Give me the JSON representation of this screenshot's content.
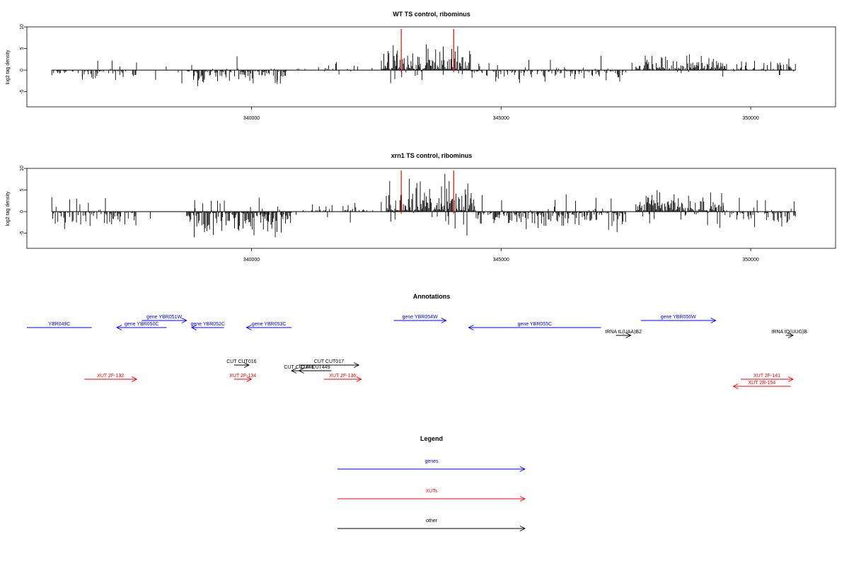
{
  "chart_data": [
    {
      "type": "bar",
      "title": "WT TS control, ribominus",
      "xlabel": "",
      "ylabel": "log2 tag density",
      "xlim": [
        335500,
        351700
      ],
      "ylim": [
        -8.5,
        10
      ],
      "x_ticks": [
        "340000",
        "345000",
        "350000"
      ],
      "y_ticks": [
        "10",
        "5",
        "0",
        "-5"
      ],
      "x_range_of_data": [
        336000,
        350900
      ],
      "red_markers_x": [
        343000,
        344050
      ],
      "dense_regions": [
        {
          "from": 336000,
          "to": 337700,
          "sign": -1,
          "max": 2.5,
          "density": 0.35
        },
        {
          "from": 338700,
          "to": 339200,
          "sign": -1,
          "max": 4.5,
          "density": 0.8
        },
        {
          "from": 339200,
          "to": 340700,
          "sign": -1,
          "max": 4,
          "density": 0.7
        },
        {
          "from": 340900,
          "to": 342600,
          "sign": 1,
          "max": 2,
          "density": 0.15
        },
        {
          "from": 342600,
          "to": 344400,
          "sign": 1,
          "max": 7,
          "density": 1
        },
        {
          "from": 344400,
          "to": 347500,
          "sign": -1,
          "max": 3.5,
          "density": 0.55
        },
        {
          "from": 347700,
          "to": 349500,
          "sign": 1,
          "max": 4,
          "density": 0.85
        },
        {
          "from": 349500,
          "to": 350900,
          "sign": 1,
          "max": 3,
          "density": 0.3
        }
      ]
    },
    {
      "type": "bar",
      "title": "xrn1 TS control, ribominus",
      "xlabel": "",
      "ylabel": "log2 tag density",
      "xlim": [
        335500,
        351700
      ],
      "ylim": [
        -8.5,
        10
      ],
      "x_ticks": [
        "340000",
        "345000",
        "350000"
      ],
      "y_ticks": [
        "10",
        "5",
        "0",
        "-5"
      ],
      "x_range_of_data": [
        336000,
        350900
      ],
      "red_markers_x": [
        343000,
        344050
      ],
      "dense_regions": [
        {
          "from": 336000,
          "to": 337700,
          "sign": -1,
          "max": 4.5,
          "density": 0.55
        },
        {
          "from": 338700,
          "to": 339200,
          "sign": -1,
          "max": 7,
          "density": 1
        },
        {
          "from": 339200,
          "to": 340800,
          "sign": -1,
          "max": 7.5,
          "density": 0.9
        },
        {
          "from": 341000,
          "to": 342600,
          "sign": 1,
          "max": 3,
          "density": 0.25
        },
        {
          "from": 342700,
          "to": 344500,
          "sign": 1,
          "max": 9,
          "density": 1
        },
        {
          "from": 344500,
          "to": 347500,
          "sign": -1,
          "max": 5,
          "density": 0.85
        },
        {
          "from": 347700,
          "to": 349500,
          "sign": 1,
          "max": 5.5,
          "density": 0.95
        },
        {
          "from": 349500,
          "to": 350900,
          "sign": -1,
          "max": 4,
          "density": 0.5
        }
      ]
    }
  ],
  "annotations": {
    "title": "Annotations",
    "features": [
      {
        "label": "YBR049C",
        "color": "#0000ff",
        "x1": 335500,
        "x2": 336800,
        "row": 1,
        "strand": "-",
        "arrow": false
      },
      {
        "label": "gene YBR050C",
        "color": "#0000ff",
        "x1": 337300,
        "x2": 338300,
        "row": 1,
        "strand": "-",
        "arrow": true
      },
      {
        "label": "gene YBR051W",
        "color": "#0000ff",
        "x1": 337800,
        "x2": 338700,
        "row": 0,
        "strand": "+",
        "arrow": true
      },
      {
        "label": "gene YBR052C",
        "color": "#0000ff",
        "x1": 338800,
        "x2": 339450,
        "row": 1,
        "strand": "-",
        "arrow": true
      },
      {
        "label": "gene YBR053C",
        "color": "#0000ff",
        "x1": 339900,
        "x2": 340800,
        "row": 1,
        "strand": "-",
        "arrow": true
      },
      {
        "label": "gene YBR054W",
        "color": "#0000ff",
        "x1": 342850,
        "x2": 343900,
        "row": 0,
        "strand": "+",
        "arrow": true
      },
      {
        "label": "gene YBR055C",
        "color": "#0000ff",
        "x1": 344350,
        "x2": 347000,
        "row": 1,
        "strand": "-",
        "arrow": true
      },
      {
        "label": "gene YBR056W",
        "color": "#0000ff",
        "x1": 347800,
        "x2": 349300,
        "row": 0,
        "strand": "+",
        "arrow": true
      },
      {
        "label": "tRNA tL(UAA)B2",
        "color": "#000000",
        "x1": 347300,
        "x2": 347600,
        "row": 2,
        "strand": "+",
        "arrow": true
      },
      {
        "label": "tRNA tQ(UUG)B",
        "color": "#000000",
        "x1": 350700,
        "x2": 350850,
        "row": 2,
        "strand": "+",
        "arrow": true
      },
      {
        "label": "CUT CUT016",
        "color": "#000000",
        "x1": 339650,
        "x2": 339950,
        "row": 3,
        "strand": "+",
        "arrow": true
      },
      {
        "label": "CUT CUT017",
        "color": "#000000",
        "x1": 340950,
        "x2": 342150,
        "row": 3,
        "strand": "+",
        "arrow": true
      },
      {
        "label": "CUT CUT448",
        "color": "#000000",
        "x1": 340800,
        "x2": 341100,
        "row": 4,
        "strand": "-",
        "arrow": true
      },
      {
        "label": "CUT CUT449",
        "color": "#000000",
        "x1": 340950,
        "x2": 341600,
        "row": 4,
        "strand": "-",
        "arrow": true
      },
      {
        "label": "XUT 2F-132",
        "color": "#ff0000",
        "x1": 336650,
        "x2": 337700,
        "row": 5,
        "strand": "+",
        "arrow": true
      },
      {
        "label": "XUT 2F-134",
        "color": "#ff0000",
        "x1": 339650,
        "x2": 340000,
        "row": 5,
        "strand": "+",
        "arrow": true
      },
      {
        "label": "XUT 2F-136",
        "color": "#ff0000",
        "x1": 341450,
        "x2": 342200,
        "row": 5,
        "strand": "+",
        "arrow": true
      },
      {
        "label": "XUT 2F-141",
        "color": "#ff0000",
        "x1": 349800,
        "x2": 350850,
        "row": 5,
        "strand": "+",
        "arrow": true
      },
      {
        "label": "XUT 2R-154",
        "color": "#ff0000",
        "x1": 349650,
        "x2": 350800,
        "row": 6,
        "strand": "-",
        "arrow": true
      }
    ]
  },
  "legend": {
    "title": "Legend",
    "items": [
      {
        "label": "genes",
        "color": "#0000ff"
      },
      {
        "label": "XUTs",
        "color": "#ff0000"
      },
      {
        "label": "other",
        "color": "#000000"
      }
    ]
  }
}
